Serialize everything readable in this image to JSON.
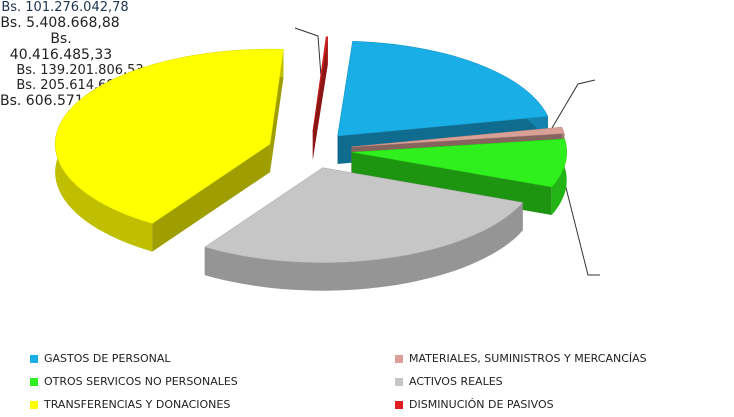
{
  "chart_data": {
    "type": "pie",
    "categories": [
      "GASTOS DE PERSONAL",
      "MATERIALES, SUMINISTROS Y MERCANCÍAS",
      "OTROS SERVICOS NO PERSONALES",
      "ACTIVOS REALES",
      "TRANSFERENCIAS Y DONACIONES",
      "DISMINUCIÓN DE PASIVOS"
    ],
    "values": [
      101276042.78,
      5408668.88,
      40416485.33,
      139201806.53,
      205614696.51,
      606571.28
    ],
    "value_labels": [
      "Bs. 101.276.042,78",
      "Bs. 5.408.668,88",
      "Bs. 40.416.485,33",
      "Bs. 139.201.806,53",
      "Bs. 205.614.696,51",
      "Bs. 606.571,28"
    ],
    "colors": [
      "#1aaee6",
      "#d9a096",
      "#2ff01c",
      "#c6c6c6",
      "#ffff00",
      "#e02020"
    ],
    "legend": "bottom"
  }
}
